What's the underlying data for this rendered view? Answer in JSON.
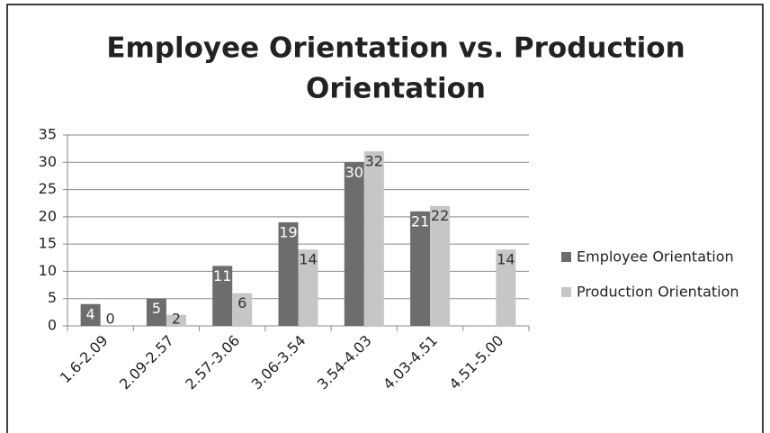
{
  "chart_data": {
    "type": "bar",
    "title": "Employee Orientation vs. Production Orientation",
    "categories": [
      "1.6-2.09",
      "2.09-2.57",
      "2.57-3.06",
      "3.06-3.54",
      "3.54-4.03",
      "4.03-4.51",
      "4.51-5.00"
    ],
    "series": [
      {
        "name": "Employee Orientation",
        "color": "#6d6d6d",
        "values": [
          4,
          5,
          11,
          19,
          30,
          21,
          null
        ]
      },
      {
        "name": "Production Orientation",
        "color": "#c6c6c6",
        "values": [
          0,
          2,
          6,
          14,
          32,
          22,
          14
        ]
      }
    ],
    "ylim": [
      0,
      35
    ],
    "yticks": [
      0,
      5,
      10,
      15,
      20,
      25,
      30,
      35
    ],
    "grid": true,
    "legend": "right"
  }
}
